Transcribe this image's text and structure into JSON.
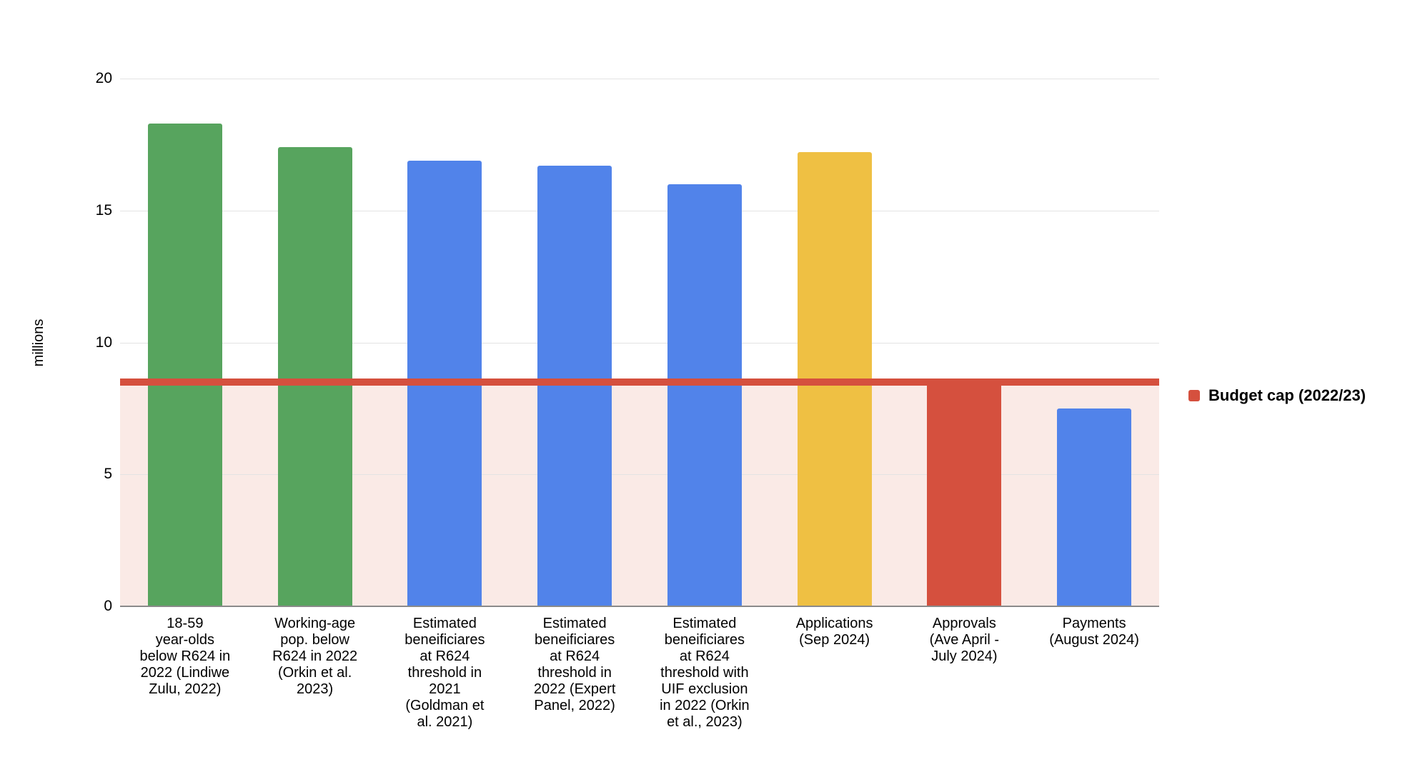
{
  "chart_data": {
    "type": "bar",
    "title": "",
    "xlabel": "",
    "ylabel": "millions",
    "ylim": [
      0,
      20
    ],
    "yticks": [
      0,
      5,
      10,
      15,
      20
    ],
    "grid": true,
    "categories": [
      "18-59\nyear-olds\nbelow R624 in\n2022 (Lindiwe\nZulu, 2022)",
      "Working-age\npop. below\nR624 in 2022\n(Orkin et al.\n2023)",
      "Estimated\nbeneificiares\nat R624\nthreshold in\n2021\n(Goldman et\nal. 2021)",
      "Estimated\nbeneificiares\nat R624\nthreshold in\n2022 (Expert\nPanel, 2022)",
      "Estimated\nbeneificiares\nat R624\nthreshold with\nUIF exclusion\nin 2022 (Orkin\net al., 2023)",
      "Applications\n(Sep 2024)",
      "Approvals\n(Ave April -\nJuly 2024)",
      "Payments\n(August 2024)"
    ],
    "values": [
      18.3,
      17.4,
      16.9,
      16.7,
      16.0,
      17.2,
      8.6,
      7.5
    ],
    "bar_color_keys": [
      "green",
      "green",
      "blue",
      "blue",
      "blue",
      "yellow",
      "red",
      "blue"
    ],
    "reference_line": {
      "label": "Budget cap (2022/23)",
      "value": 8.5,
      "color_key": "red",
      "shade_below": true
    },
    "legend": {
      "position": "right",
      "entries": [
        {
          "label": "Budget cap (2022/23)",
          "color_key": "red"
        }
      ]
    }
  },
  "colors": {
    "green": "#57A45E",
    "blue": "#5183EA",
    "yellow": "#EFC043",
    "red": "#D5503E",
    "shade": "#FAEAE6",
    "gridline": "#E3E3E3",
    "axis_line": "#8A8A8A",
    "text": "#000000"
  }
}
